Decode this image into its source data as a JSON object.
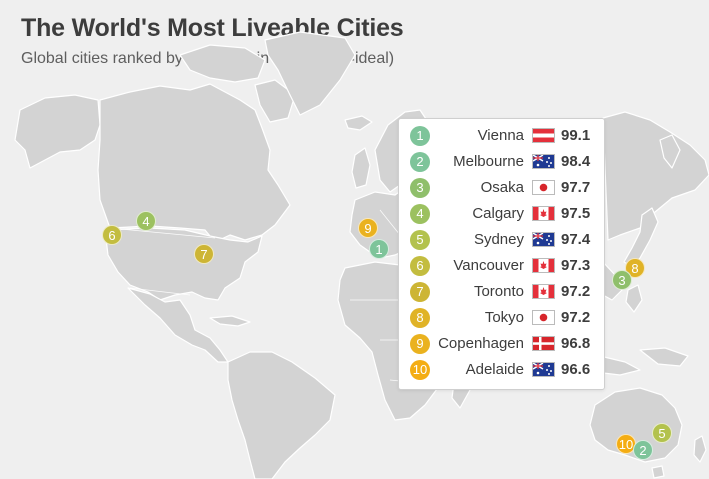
{
  "header": {
    "title": "The World's Most Liveable Cities",
    "subtitle": "Global cities ranked by liveability in 2018 (100=ideal)"
  },
  "colors": {
    "background": "#efefef",
    "land": "#d3d3d3",
    "rank_colors": [
      "#7ec49a",
      "#7ec49a",
      "#8fbf6b",
      "#9cc160",
      "#b3c24d",
      "#c3bd40",
      "#cdb535",
      "#e0b327",
      "#eab21f",
      "#f4ad13"
    ]
  },
  "cities": [
    {
      "rank": "1",
      "city": "Vienna",
      "flag": "austria-flag",
      "score": "99.1"
    },
    {
      "rank": "2",
      "city": "Melbourne",
      "flag": "australia-flag",
      "score": "98.4"
    },
    {
      "rank": "3",
      "city": "Osaka",
      "flag": "japan-flag",
      "score": "97.7"
    },
    {
      "rank": "4",
      "city": "Calgary",
      "flag": "canada-flag",
      "score": "97.5"
    },
    {
      "rank": "5",
      "city": "Sydney",
      "flag": "australia-flag",
      "score": "97.4"
    },
    {
      "rank": "6",
      "city": "Vancouver",
      "flag": "canada-flag",
      "score": "97.3"
    },
    {
      "rank": "7",
      "city": "Toronto",
      "flag": "canada-flag",
      "score": "97.2"
    },
    {
      "rank": "8",
      "city": "Tokyo",
      "flag": "japan-flag",
      "score": "97.2"
    },
    {
      "rank": "9",
      "city": "Copenhagen",
      "flag": "denmark-flag",
      "score": "96.8"
    },
    {
      "rank": "10",
      "city": "Adelaide",
      "flag": "australia-flag",
      "score": "96.6"
    }
  ]
}
